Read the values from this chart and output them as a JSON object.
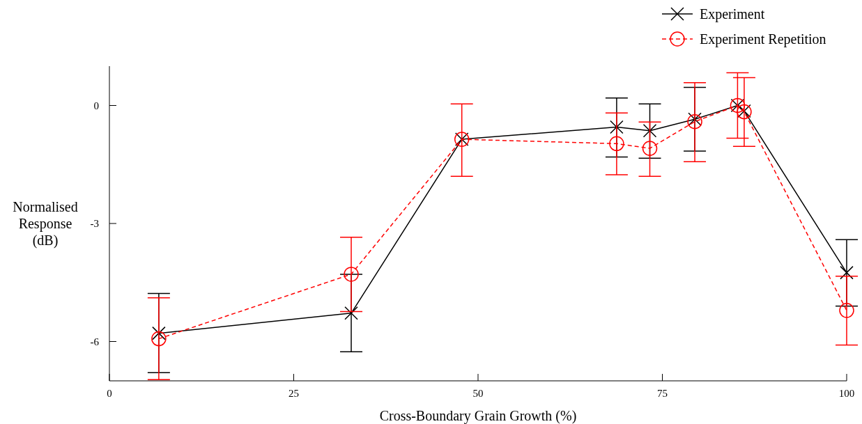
{
  "chart_data": {
    "type": "line",
    "xlabel": "Cross-Boundary Grain Growth (%)",
    "ylabel": "Normalised Response (dB)",
    "x": [
      6.7,
      32.8,
      47.8,
      68.8,
      73.3,
      79.4,
      85.2,
      86.1,
      100
    ],
    "xlim": [
      0,
      100
    ],
    "xticks": [
      0,
      25,
      50,
      75,
      100
    ],
    "ylim": [
      -7,
      1
    ],
    "yticks": [
      0,
      -3,
      -6
    ],
    "grid": false,
    "legend": "top right",
    "series": [
      {
        "name": "Experiment",
        "color": "#000000",
        "marker": "cross",
        "line_style": "solid",
        "values": [
          -5.79,
          -5.28,
          -0.86,
          -0.55,
          -0.64,
          -0.35,
          0,
          -0.14,
          -4.25
        ],
        "errors": [
          [
            -6.79,
            -4.78
          ],
          [
            -6.26,
            -4.29
          ],
          null,
          [
            -1.31,
            0.19
          ],
          [
            -1.34,
            0.04
          ],
          [
            -1.16,
            0.46
          ],
          null,
          null,
          [
            -5.1,
            -3.41
          ]
        ]
      },
      {
        "name": "Experiment Repetition",
        "color": "#ff0000",
        "marker": "circle",
        "line_style": "dashed",
        "values": [
          -5.93,
          -4.29,
          -0.86,
          -0.97,
          -1.09,
          -0.41,
          0,
          -0.16,
          -5.21
        ],
        "errors": [
          [
            -6.97,
            -4.89
          ],
          [
            -5.24,
            -3.35
          ],
          [
            -1.8,
            0.04
          ],
          [
            -1.76,
            -0.19
          ],
          [
            -1.8,
            -0.42
          ],
          [
            -1.43,
            0.58
          ],
          [
            -0.83,
            0.83
          ],
          [
            -1.04,
            0.71
          ],
          [
            -6.09,
            -4.34
          ]
        ]
      }
    ]
  }
}
